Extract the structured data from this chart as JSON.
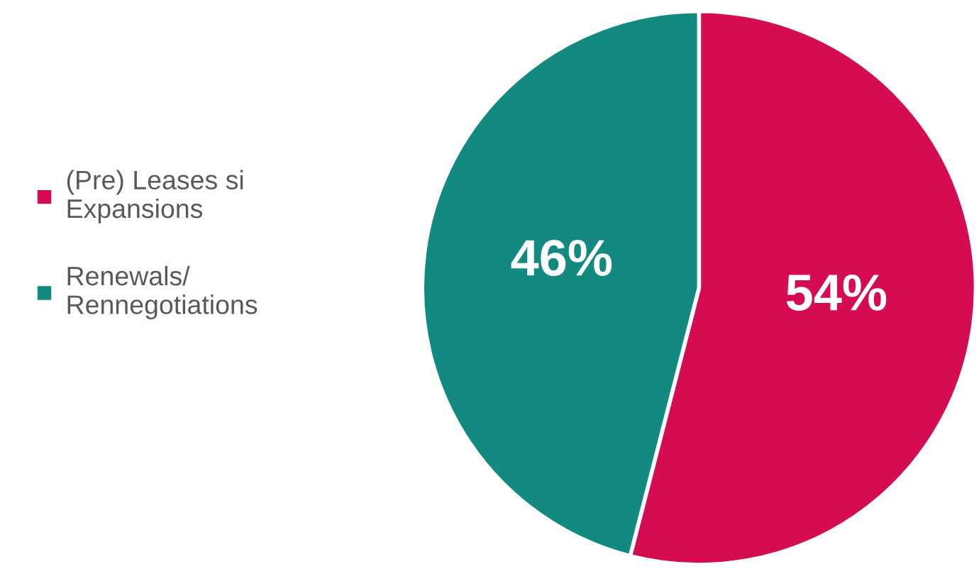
{
  "chart_data": {
    "type": "pie",
    "categories": [
      "(Pre) Leases si\nExpansions",
      "Renewals/\nRennegotiations"
    ],
    "values": [
      54,
      46
    ],
    "colors": [
      "#d50c52",
      "#128a80"
    ],
    "value_labels": [
      "54%",
      "46%"
    ],
    "legend": "left"
  }
}
